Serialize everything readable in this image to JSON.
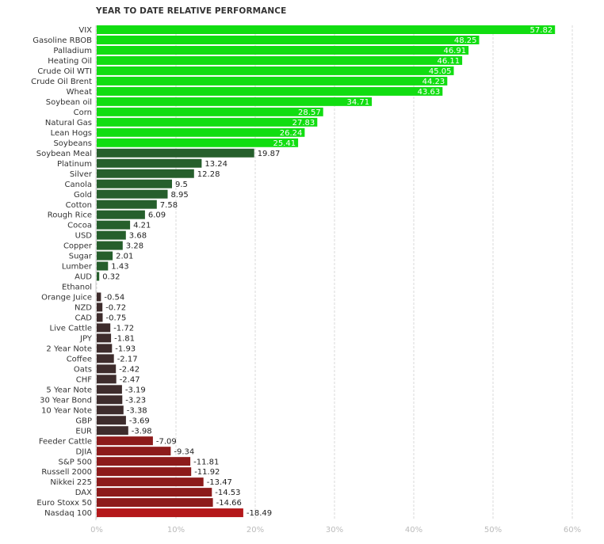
{
  "chart_data": {
    "type": "bar",
    "orientation": "horizontal",
    "title": "YEAR TO DATE RELATIVE PERFORMANCE",
    "xlim": [
      0,
      60
    ],
    "xticks": [
      "0%",
      "10%",
      "20%",
      "30%",
      "40%",
      "50%",
      "60%"
    ],
    "grid": true,
    "categories": [
      "VIX",
      "Gasoline RBOB",
      "Palladium",
      "Heating Oil",
      "Crude Oil WTI",
      "Crude Oil Brent",
      "Wheat",
      "Soybean oil",
      "Corn",
      "Natural Gas",
      "Lean Hogs",
      "Soybeans",
      "Soybean Meal",
      "Platinum",
      "Silver",
      "Canola",
      "Gold",
      "Cotton",
      "Rough Rice",
      "Cocoa",
      "USD",
      "Copper",
      "Sugar",
      "Lumber",
      "AUD",
      "Ethanol",
      "Orange Juice",
      "NZD",
      "CAD",
      "Live Cattle",
      "JPY",
      "2 Year Note",
      "Coffee",
      "Oats",
      "CHF",
      "5 Year Note",
      "30 Year Bond",
      "10 Year Note",
      "GBP",
      "EUR",
      "Feeder Cattle",
      "DJIA",
      "S&P 500",
      "Russell 2000",
      "Nikkei 225",
      "DAX",
      "Euro Stoxx 50",
      "Nasdaq 100"
    ],
    "values": [
      57.82,
      48.25,
      46.91,
      46.11,
      45.05,
      44.23,
      43.63,
      34.71,
      28.57,
      27.83,
      26.24,
      25.41,
      19.87,
      13.24,
      12.28,
      9.5,
      8.95,
      7.58,
      6.09,
      4.21,
      3.68,
      3.28,
      2.01,
      1.43,
      0.32,
      0,
      -0.54,
      -0.72,
      -0.75,
      -1.72,
      -1.81,
      -1.93,
      -2.17,
      -2.42,
      -2.47,
      -3.19,
      -3.23,
      -3.38,
      -3.69,
      -3.98,
      -7.09,
      -9.34,
      -11.81,
      -11.92,
      -13.47,
      -14.53,
      -14.66,
      -18.49
    ],
    "value_labels": [
      "57.82",
      "48.25",
      "46.91",
      "46.11",
      "45.05",
      "44.23",
      "43.63",
      "34.71",
      "28.57",
      "27.83",
      "26.24",
      "25.41",
      "19.87",
      "13.24",
      "12.28",
      "9.5",
      "8.95",
      "7.58",
      "6.09",
      "4.21",
      "3.68",
      "3.28",
      "2.01",
      "1.43",
      "0.32",
      "",
      "-0.54",
      "-0.72",
      "-0.75",
      "-1.72",
      "-1.81",
      "-1.93",
      "-2.17",
      "-2.42",
      "-2.47",
      "-3.19",
      "-3.23",
      "-3.38",
      "-3.69",
      "-3.98",
      "-7.09",
      "-9.34",
      "-11.81",
      "-11.92",
      "-13.47",
      "-14.53",
      "-14.66",
      "-18.49"
    ],
    "colors": {
      "bright_green": "#11dd11",
      "dark_green": "#265f2c",
      "dark_brown": "#3e2c2c",
      "dark_red": "#8d1b1b",
      "bright_red": "#b4181a",
      "grid": "#d9d9d9"
    }
  }
}
